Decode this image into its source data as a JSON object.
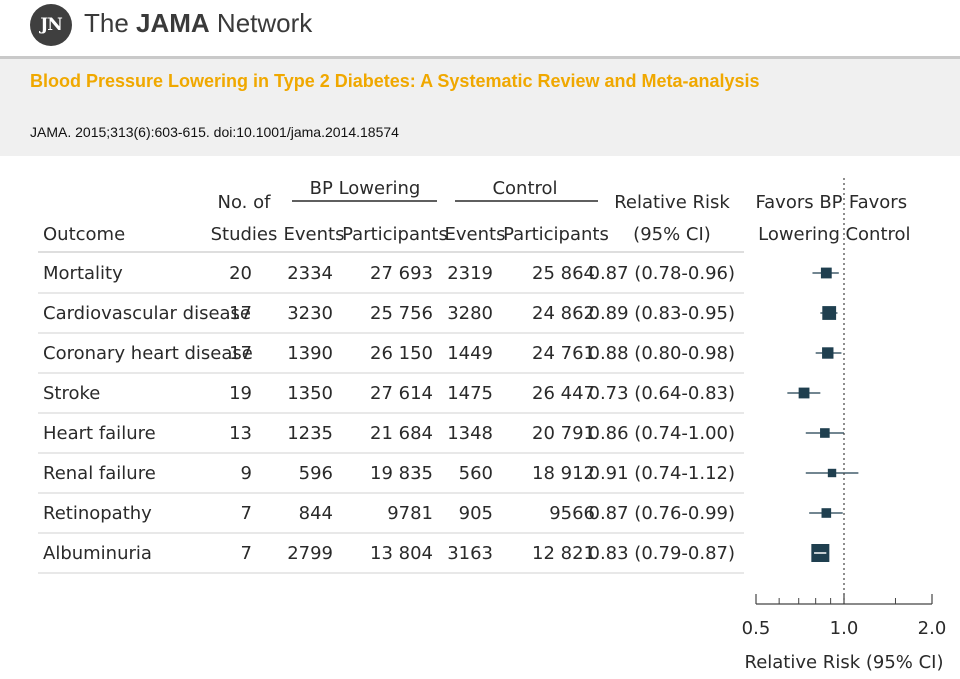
{
  "publisher": {
    "logo_initials": "JN",
    "name_prefix": "The ",
    "name_strong": "JAMA",
    "name_suffix": " Network"
  },
  "article": {
    "title": "Blood Pressure Lowering in Type 2 Diabetes:  A Systematic Review and Meta-analysis",
    "citation": "JAMA. 2015;313(6):603-615. doi:10.1001/jama.2014.18574"
  },
  "colors": {
    "title": "#f0a800",
    "marker": "#1f3f4f",
    "text": "#2a2a2a"
  },
  "chart_data": {
    "type": "table",
    "plot": "forest",
    "columns": {
      "outcome": "Outcome",
      "studies": [
        "No. of",
        "Studies"
      ],
      "group1": "BP Lowering",
      "group2": "Control",
      "events": "Events",
      "participants": "Participants",
      "rr": [
        "Relative Risk",
        "(95% CI)"
      ],
      "favors_left": [
        "Favors BP",
        "Lowering"
      ],
      "favors_right": [
        "Favors",
        "Control"
      ]
    },
    "rows": [
      {
        "outcome": "Mortality",
        "studies": "20",
        "bp_events": "2334",
        "bp_participants": "27 693",
        "ctrl_events": "2319",
        "ctrl_participants": "25 864",
        "rr_text": "0.87 (0.78-0.96)",
        "rr": 0.87,
        "lo": 0.78,
        "hi": 0.96,
        "weight": 0.4
      },
      {
        "outcome": "Cardiovascular disease",
        "studies": "17",
        "bp_events": "3230",
        "bp_participants": "25 756",
        "ctrl_events": "3280",
        "ctrl_participants": "24 862",
        "rr_text": "0.89 (0.83-0.95)",
        "rr": 0.89,
        "lo": 0.83,
        "hi": 0.95,
        "weight": 0.65
      },
      {
        "outcome": "Coronary heart disease",
        "studies": "17",
        "bp_events": "1390",
        "bp_participants": "26 150",
        "ctrl_events": "1449",
        "ctrl_participants": "24 761",
        "rr_text": "0.88 (0.80-0.98)",
        "rr": 0.88,
        "lo": 0.8,
        "hi": 0.98,
        "weight": 0.45
      },
      {
        "outcome": "Stroke",
        "studies": "19",
        "bp_events": "1350",
        "bp_participants": "27 614",
        "ctrl_events": "1475",
        "ctrl_participants": "26 447",
        "rr_text": "0.73 (0.64-0.83)",
        "rr": 0.73,
        "lo": 0.64,
        "hi": 0.83,
        "weight": 0.4
      },
      {
        "outcome": "Heart failure",
        "studies": "13",
        "bp_events": "1235",
        "bp_participants": "21 684",
        "ctrl_events": "1348",
        "ctrl_participants": "20 791",
        "rr_text": "0.86 (0.74-1.00)",
        "rr": 0.86,
        "lo": 0.74,
        "hi": 1.0,
        "weight": 0.3
      },
      {
        "outcome": "Renal failure",
        "studies": "9",
        "bp_events": "596",
        "bp_participants": "19 835",
        "ctrl_events": "560",
        "ctrl_participants": "18 912",
        "rr_text": "0.91 (0.74-1.12)",
        "rr": 0.91,
        "lo": 0.74,
        "hi": 1.12,
        "weight": 0.2
      },
      {
        "outcome": "Retinopathy",
        "studies": "7",
        "bp_events": "844",
        "bp_participants": "9781",
        "ctrl_events": "905",
        "ctrl_participants": "9566",
        "rr_text": "0.87 (0.76-0.99)",
        "rr": 0.87,
        "lo": 0.76,
        "hi": 0.99,
        "weight": 0.3
      },
      {
        "outcome": "Albuminuria",
        "studies": "7",
        "bp_events": "2799",
        "bp_participants": "13 804",
        "ctrl_events": "3163",
        "ctrl_participants": "12 821",
        "rr_text": "0.83 (0.79-0.87)",
        "rr": 0.83,
        "lo": 0.79,
        "hi": 0.87,
        "weight": 1.0
      }
    ],
    "x_axis": {
      "label": "Relative Risk (95% CI)",
      "scale": "log",
      "range": [
        0.5,
        2.0
      ],
      "ticks": [
        0.5,
        1.0,
        2.0
      ],
      "tick_labels": [
        "0.5",
        "1.0",
        "2.0"
      ]
    },
    "reference_line": 1.0
  }
}
